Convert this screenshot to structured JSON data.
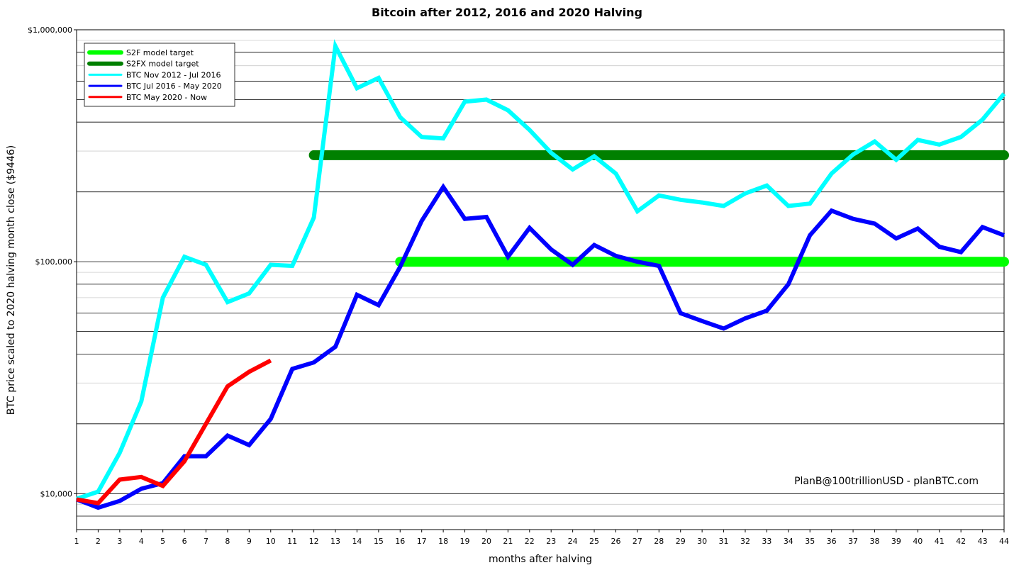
{
  "chart_data": {
    "type": "line",
    "title": "Bitcoin after 2012, 2016 and 2020 Halving",
    "xlabel": "months after halving",
    "ylabel": "BTC price scaled to 2020 halving month close ($9446)",
    "yscale": "log",
    "xlim": [
      1,
      44
    ],
    "ylim": [
      7000,
      1000000
    ],
    "x_ticks": [
      1,
      2,
      3,
      4,
      5,
      6,
      7,
      8,
      9,
      10,
      11,
      12,
      13,
      14,
      15,
      16,
      17,
      18,
      19,
      20,
      21,
      22,
      23,
      24,
      25,
      26,
      27,
      28,
      29,
      30,
      31,
      32,
      33,
      34,
      35,
      36,
      37,
      38,
      39,
      40,
      41,
      42,
      43,
      44
    ],
    "y_ticks": [
      {
        "value": 10000,
        "label": "$10,000"
      },
      {
        "value": 100000,
        "label": "$100,000"
      },
      {
        "value": 1000000,
        "label": "$1,000,000"
      }
    ],
    "legend_position": "top-left",
    "annotation": "PlanB@100trillionUSD  -  planBTC.com",
    "series": [
      {
        "name": "S2F model target",
        "color": "#00ff00",
        "width": "thick",
        "x": [
          16,
          44
        ],
        "values": [
          100000,
          100000
        ]
      },
      {
        "name": "S2FX model target",
        "color": "#008000",
        "width": "thick",
        "x": [
          12,
          44
        ],
        "values": [
          288000,
          288000
        ]
      },
      {
        "name": "BTC Nov 2012 - Jul 2016",
        "color": "#00ffff",
        "width": "normal",
        "x": [
          1,
          2,
          3,
          4,
          5,
          6,
          7,
          8,
          9,
          10,
          11,
          12,
          13,
          14,
          15,
          16,
          17,
          18,
          19,
          20,
          21,
          22,
          23,
          24,
          25,
          26,
          27,
          28,
          29,
          30,
          31,
          32,
          33,
          34,
          35,
          36,
          37,
          38,
          39,
          40,
          41,
          42,
          43,
          44
        ],
        "values": [
          9500,
          10200,
          15000,
          25000,
          70000,
          105000,
          97000,
          67000,
          73000,
          97000,
          96000,
          155000,
          850000,
          560000,
          620000,
          420000,
          345000,
          340000,
          490000,
          500000,
          450000,
          370000,
          295000,
          250000,
          285000,
          240000,
          165000,
          193000,
          185000,
          180000,
          174000,
          197000,
          213000,
          174000,
          178000,
          240000,
          290000,
          330000,
          275000,
          335000,
          320000,
          345000,
          410000,
          530000
        ]
      },
      {
        "name": "BTC Jul 2016 - May 2020",
        "color": "#0000ff",
        "width": "normal",
        "x": [
          1,
          2,
          3,
          4,
          5,
          6,
          7,
          8,
          9,
          10,
          11,
          12,
          13,
          14,
          15,
          16,
          17,
          18,
          19,
          20,
          21,
          22,
          23,
          24,
          25,
          26,
          27,
          28,
          29,
          30,
          31,
          32,
          33,
          34,
          35,
          36,
          37,
          38,
          39,
          40,
          41,
          42,
          43,
          44
        ],
        "values": [
          9446,
          8700,
          9300,
          10500,
          11100,
          14500,
          14500,
          17800,
          16200,
          21000,
          34500,
          36800,
          43000,
          72000,
          65000,
          95000,
          150000,
          210000,
          153000,
          156000,
          105000,
          140000,
          113000,
          97000,
          118000,
          106000,
          100000,
          96000,
          60000,
          55500,
          51500,
          57000,
          61500,
          80000,
          130000,
          166000,
          153000,
          146000,
          126000,
          139000,
          116000,
          110000,
          141000,
          130000
        ]
      },
      {
        "name": "BTC May 2020 - Now",
        "color": "#ff0000",
        "width": "normal",
        "x": [
          1,
          2,
          3,
          4,
          5,
          6,
          7,
          8,
          9,
          10
        ],
        "values": [
          9446,
          9100,
          11500,
          11800,
          10800,
          13800,
          20000,
          29000,
          33500,
          37500
        ]
      }
    ]
  }
}
